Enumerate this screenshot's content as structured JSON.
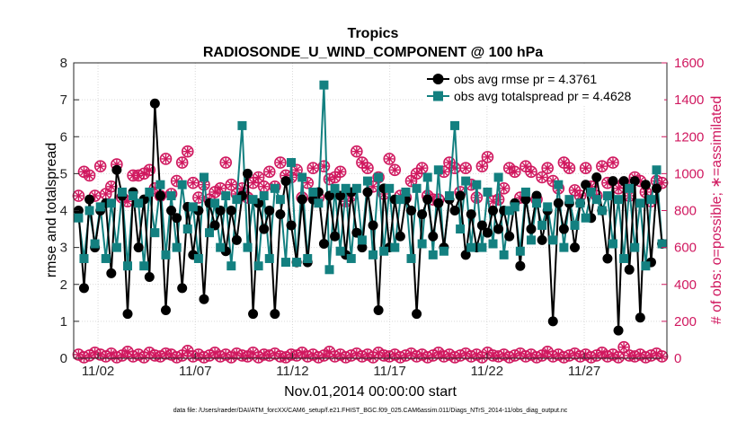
{
  "chart_data": {
    "type": "line",
    "title": "Tropics",
    "subtitle": "RADIOSONDE_U_WIND_COMPONENT @ 100 hPa",
    "xlabel": "Nov.01,2014 00:00:00 start",
    "ylabel_left": "rmse and totalspread",
    "ylabel_right": "# of obs: o=possible; ∗=assimilated",
    "footnote": "data file: /Users/raeder/DAI/ATM_forcXX/CAM6_setup/f.e21.FHIST_BGC.f09_025.CAM6assim.011/Diags_NTrS_2014-11/obs_diag_output.nc",
    "x_tick_labels": [
      "11/02",
      "11/07",
      "11/12",
      "11/17",
      "11/22",
      "11/27"
    ],
    "x_tick_days": [
      2,
      7,
      12,
      17,
      22,
      27
    ],
    "xlim_days": [
      0.75,
      31.25
    ],
    "ylim_left": [
      0,
      8
    ],
    "ylim_right": [
      0,
      1600
    ],
    "yticks_left": [
      "0",
      "1",
      "2",
      "3",
      "4",
      "5",
      "6",
      "7",
      "8"
    ],
    "yticks_right": [
      "0",
      "200",
      "400",
      "600",
      "800",
      "1000",
      "1200",
      "1400",
      "1600"
    ],
    "colors": {
      "rmse": "#000000",
      "spread": "#138080",
      "obs": "#d0185f",
      "grid": "#d9d9d9"
    },
    "legend": [
      "obs avg rmse pr = 4.3761",
      "obs avg totalspread pr = 4.4628"
    ],
    "series": [
      {
        "name": "obs avg rmse",
        "axis": "left",
        "values": [
          4.0,
          1.9,
          4.3,
          3.0,
          4.0,
          4.2,
          2.3,
          5.1,
          4.4,
          1.2,
          4.5,
          3.0,
          4.3,
          2.2,
          6.9,
          4.4,
          1.3,
          4.0,
          3.8,
          1.9,
          4.1,
          2.8,
          4.0,
          1.6,
          4.2,
          3.6,
          4.0,
          2.9,
          4.0,
          3.2,
          4.4,
          5.0,
          1.2,
          4.2,
          3.5,
          4.0,
          1.2,
          3.9,
          4.8,
          3.6,
          2.6,
          4.3,
          2.6,
          4.3,
          4.5,
          3.1,
          4.4,
          3.3,
          4.4,
          2.8,
          4.5,
          3.4,
          3.0,
          4.5,
          3.6,
          1.3,
          4.6,
          3.0,
          4.3,
          3.3,
          4.3,
          4.0,
          1.2,
          3.9,
          4.3,
          3.3,
          4.2,
          3.0,
          4.3,
          4.0,
          4.4,
          2.8,
          3.9,
          3.0,
          3.6,
          3.4,
          4.0,
          3.5,
          4.0,
          3.3,
          4.2,
          2.5,
          4.3,
          3.5,
          4.4,
          3.2,
          4.0,
          1.0,
          4.2,
          3.5,
          4.2,
          3.0,
          4.2,
          4.7,
          3.8,
          4.9,
          4.0,
          2.7,
          4.8,
          0.75,
          4.8,
          2.4,
          4.8,
          1.1,
          4.7,
          2.6,
          4.6,
          3.1
        ]
      },
      {
        "name": "obs avg totalspread",
        "axis": "left",
        "values": [
          3.8,
          2.7,
          4.0,
          3.1,
          4.1,
          2.7,
          4.2,
          3.0,
          4.5,
          2.5,
          4.4,
          4.2,
          2.5,
          4.5,
          3.4,
          4.7,
          2.8,
          4.4,
          3.0,
          4.7,
          3.5,
          4.1,
          2.7,
          4.9,
          3.4,
          4.2,
          3.0,
          4.4,
          2.5,
          4.3,
          6.3,
          3.0,
          4.3,
          2.5,
          4.4,
          2.7,
          4.6,
          4.3,
          2.6,
          5.3,
          2.6,
          4.9,
          2.7,
          4.5,
          4.2,
          7.4,
          2.4,
          4.6,
          2.9,
          4.6,
          2.7,
          4.6,
          3.2,
          4.8,
          2.8,
          4.9,
          2.9,
          4.6,
          3.0,
          4.3,
          4.5,
          2.7,
          4.6,
          3.1,
          4.9,
          2.8,
          5.1,
          2.9,
          4.4,
          6.3,
          3.5,
          4.8,
          3.0,
          4.7,
          3.0,
          4.5,
          3.1,
          4.9,
          2.8,
          4.0,
          4.1,
          2.9,
          4.5,
          3.2,
          4.2,
          3.6,
          4.1,
          3.2,
          4.7,
          3.0,
          4.3,
          3.6,
          4.2,
          3.8,
          4.5,
          4.3,
          4.0,
          4.4,
          3.1,
          4.3,
          2.7,
          4.6,
          3.0,
          4.2,
          2.5,
          4.3,
          5.1,
          3.1
        ]
      },
      {
        "name": "# obs possible",
        "axis": "right",
        "values": [
          880,
          1010,
          990,
          880,
          1040,
          890,
          930,
          1050,
          870,
          850,
          990,
          990,
          1000,
          1020,
          920,
          880,
          1080,
          890,
          960,
          1060,
          1120,
          950,
          870,
          940,
          860,
          900,
          920,
          1060,
          940,
          890,
          920,
          870,
          950,
          980,
          930,
          1010,
          930,
          1060,
          990,
          980,
          1020,
          870,
          950,
          1030,
          870,
          1040,
          970,
          980,
          1010,
          850,
          880,
          1120,
          1060,
          1030,
          930,
          980,
          890,
          1080,
          1020,
          880,
          870,
          960,
          1000,
          1030,
          880,
          860,
          860,
          1010,
          1060,
          1030,
          900,
          1030,
          940,
          870,
          1040,
          1090,
          850,
          860,
          920,
          1030,
          1010,
          870,
          1040,
          1010,
          860,
          980,
          1030,
          960,
          920,
          1060,
          1030,
          910,
          880,
          1030,
          930,
          880,
          1040,
          950,
          1060,
          920,
          950,
          880,
          980,
          960,
          900,
          850,
          960,
          950
        ]
      },
      {
        "name": "# obs assimilated",
        "axis": "right",
        "values": [
          880,
          1010,
          990,
          880,
          1040,
          890,
          930,
          1050,
          870,
          850,
          990,
          990,
          1000,
          1020,
          920,
          880,
          1080,
          890,
          960,
          1060,
          1120,
          950,
          870,
          940,
          860,
          900,
          920,
          1060,
          940,
          890,
          920,
          870,
          950,
          980,
          930,
          1010,
          930,
          1060,
          990,
          980,
          1020,
          870,
          950,
          1030,
          870,
          1040,
          970,
          980,
          1010,
          850,
          880,
          1120,
          1060,
          1030,
          930,
          980,
          890,
          1080,
          1020,
          880,
          870,
          960,
          1000,
          1030,
          880,
          860,
          860,
          1010,
          1060,
          1030,
          900,
          1030,
          940,
          870,
          1040,
          1090,
          850,
          860,
          920,
          1030,
          1010,
          870,
          1040,
          1010,
          860,
          980,
          1030,
          960,
          920,
          1060,
          1030,
          910,
          880,
          1030,
          930,
          880,
          1040,
          950,
          1060,
          920,
          950,
          880,
          980,
          960,
          900,
          850,
          960,
          950
        ]
      },
      {
        "name": "# obs possible (low)",
        "axis": "right",
        "values": [
          20,
          5,
          15,
          30,
          20,
          10,
          25,
          5,
          15,
          35,
          10,
          20,
          5,
          30,
          15,
          10,
          25,
          20,
          5,
          15,
          40,
          10,
          20,
          5,
          15,
          30,
          10,
          20,
          5,
          25,
          15,
          10,
          30,
          5,
          20,
          15,
          25,
          10,
          5,
          20,
          15,
          30,
          10,
          20,
          5,
          15,
          35,
          10,
          20,
          5,
          15,
          25,
          10,
          20,
          5,
          30,
          15,
          10,
          20,
          5,
          15,
          25,
          10,
          20,
          5,
          15,
          30,
          10,
          20,
          5,
          15,
          25,
          10,
          20,
          5,
          30,
          15,
          10,
          20,
          5,
          15,
          25,
          10,
          20,
          5,
          15,
          35,
          10,
          20,
          5,
          15,
          25,
          10,
          20,
          5,
          15,
          30,
          10,
          20,
          5,
          60,
          15,
          10,
          20,
          5,
          15,
          25,
          10
        ]
      }
    ]
  }
}
